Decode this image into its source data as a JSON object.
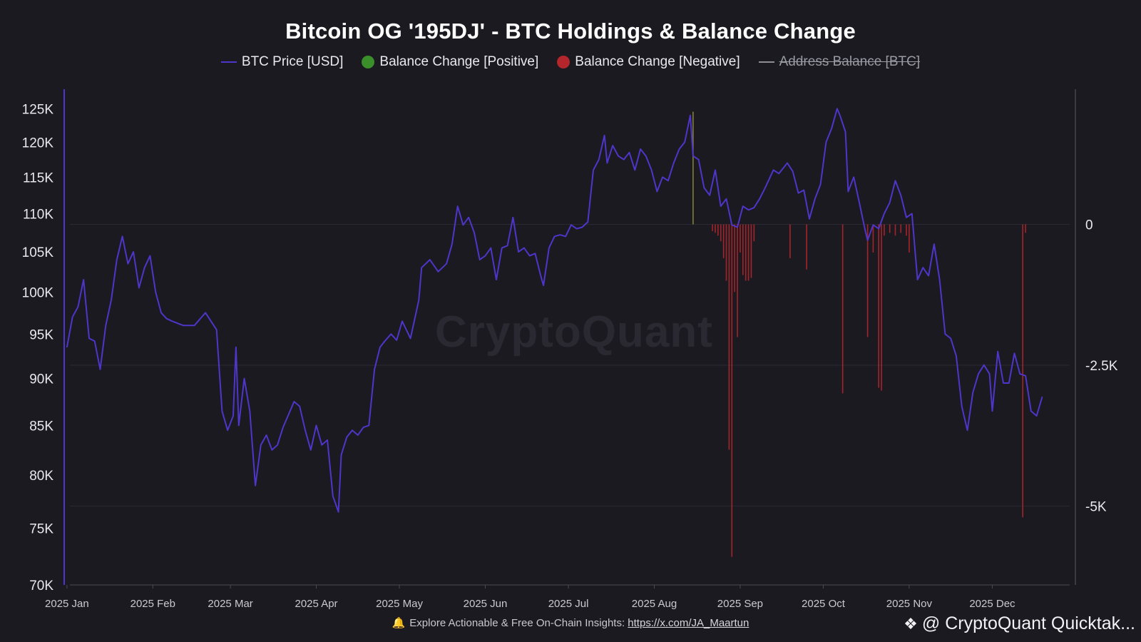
{
  "chart_data": {
    "type": "line",
    "title": "Bitcoin OG '195DJ' - BTC Holdings & Balance Change",
    "legend": [
      {
        "label": "BTC Price [USD]",
        "color": "#4f35c9",
        "marker": "line",
        "visible": true
      },
      {
        "label": "Balance Change [Positive]",
        "color": "#3a8f2a",
        "marker": "dot",
        "visible": true
      },
      {
        "label": "Balance Change [Negative]",
        "color": "#b3262b",
        "marker": "dot",
        "visible": true
      },
      {
        "label": "Address Balance [BTC]",
        "color": "#9a9aa3",
        "marker": "line",
        "visible": false
      }
    ],
    "legend_position": "top-center",
    "x_tick_labels": [
      "2025 Jan",
      "2025 Feb",
      "2025 Mar",
      "2025 Apr",
      "2025 May",
      "2025 Jun",
      "2025 Jul",
      "2025 Aug",
      "2025 Sep",
      "2025 Oct",
      "2025 Nov",
      "2025 Dec"
    ],
    "x_range": [
      "2024-12-31",
      "2025-12-31"
    ],
    "left_axis": {
      "scale": "log",
      "range": [
        70000,
        128000
      ],
      "ticks": [
        70000,
        75000,
        80000,
        85000,
        90000,
        95000,
        100000,
        105000,
        110000,
        115000,
        120000,
        125000
      ],
      "tick_labels": [
        "70K",
        "75K",
        "80K",
        "85K",
        "90K",
        "95K",
        "100K",
        "105K",
        "110K",
        "115K",
        "120K",
        "125K"
      ]
    },
    "right_axis": {
      "scale": "linear",
      "range": [
        -6400,
        2400
      ],
      "ticks": [
        0,
        -2500,
        -5000
      ],
      "tick_labels": [
        "0",
        "-2.5K",
        "-5K"
      ]
    },
    "grid": "horizontal lines at right-axis ticks",
    "series": [
      {
        "name": "BTC Price [USD]",
        "axis": "left",
        "points": [
          [
            "2025-01-01",
            93500
          ],
          [
            "2025-01-03",
            97000
          ],
          [
            "2025-01-05",
            98200
          ],
          [
            "2025-01-07",
            101500
          ],
          [
            "2025-01-09",
            94500
          ],
          [
            "2025-01-11",
            94200
          ],
          [
            "2025-01-13",
            91000
          ],
          [
            "2025-01-15",
            96000
          ],
          [
            "2025-01-17",
            99000
          ],
          [
            "2025-01-19",
            104000
          ],
          [
            "2025-01-21",
            107000
          ],
          [
            "2025-01-23",
            103500
          ],
          [
            "2025-01-25",
            105000
          ],
          [
            "2025-01-27",
            100500
          ],
          [
            "2025-01-29",
            103000
          ],
          [
            "2025-01-31",
            104500
          ],
          [
            "2025-02-02",
            100000
          ],
          [
            "2025-02-04",
            97500
          ],
          [
            "2025-02-06",
            96800
          ],
          [
            "2025-02-08",
            96500
          ],
          [
            "2025-02-12",
            96000
          ],
          [
            "2025-02-16",
            96000
          ],
          [
            "2025-02-20",
            97500
          ],
          [
            "2025-02-22",
            96500
          ],
          [
            "2025-02-24",
            95500
          ],
          [
            "2025-02-26",
            86500
          ],
          [
            "2025-02-28",
            84500
          ],
          [
            "2025-03-02",
            86000
          ],
          [
            "2025-03-03",
            93500
          ],
          [
            "2025-03-04",
            85000
          ],
          [
            "2025-03-06",
            90000
          ],
          [
            "2025-03-08",
            86500
          ],
          [
            "2025-03-10",
            79000
          ],
          [
            "2025-03-12",
            83000
          ],
          [
            "2025-03-14",
            84000
          ],
          [
            "2025-03-16",
            82500
          ],
          [
            "2025-03-18",
            83000
          ],
          [
            "2025-03-20",
            84800
          ],
          [
            "2025-03-24",
            87500
          ],
          [
            "2025-03-26",
            87000
          ],
          [
            "2025-03-28",
            84500
          ],
          [
            "2025-03-30",
            82500
          ],
          [
            "2025-04-01",
            85000
          ],
          [
            "2025-04-03",
            83000
          ],
          [
            "2025-04-05",
            83500
          ],
          [
            "2025-04-07",
            78000
          ],
          [
            "2025-04-09",
            76500
          ],
          [
            "2025-04-10",
            82000
          ],
          [
            "2025-04-12",
            83800
          ],
          [
            "2025-04-14",
            84500
          ],
          [
            "2025-04-16",
            84000
          ],
          [
            "2025-04-18",
            84800
          ],
          [
            "2025-04-20",
            85000
          ],
          [
            "2025-04-22",
            91000
          ],
          [
            "2025-04-24",
            93500
          ],
          [
            "2025-04-26",
            94300
          ],
          [
            "2025-04-28",
            95000
          ],
          [
            "2025-04-30",
            94300
          ],
          [
            "2025-05-02",
            96500
          ],
          [
            "2025-05-05",
            94500
          ],
          [
            "2025-05-08",
            99000
          ],
          [
            "2025-05-09",
            103000
          ],
          [
            "2025-05-12",
            104000
          ],
          [
            "2025-05-15",
            102500
          ],
          [
            "2025-05-18",
            103500
          ],
          [
            "2025-05-20",
            106000
          ],
          [
            "2025-05-22",
            111000
          ],
          [
            "2025-05-24",
            108500
          ],
          [
            "2025-05-26",
            109500
          ],
          [
            "2025-05-28",
            107500
          ],
          [
            "2025-05-30",
            104000
          ],
          [
            "2025-06-01",
            104500
          ],
          [
            "2025-06-03",
            105500
          ],
          [
            "2025-06-05",
            101500
          ],
          [
            "2025-06-07",
            105500
          ],
          [
            "2025-06-09",
            105800
          ],
          [
            "2025-06-11",
            109500
          ],
          [
            "2025-06-13",
            105000
          ],
          [
            "2025-06-15",
            105500
          ],
          [
            "2025-06-17",
            104500
          ],
          [
            "2025-06-19",
            104800
          ],
          [
            "2025-06-21",
            102000
          ],
          [
            "2025-06-22",
            100800
          ],
          [
            "2025-06-24",
            105500
          ],
          [
            "2025-06-26",
            107000
          ],
          [
            "2025-06-28",
            107200
          ],
          [
            "2025-06-30",
            107000
          ],
          [
            "2025-07-02",
            108500
          ],
          [
            "2025-07-04",
            108000
          ],
          [
            "2025-07-06",
            108200
          ],
          [
            "2025-07-08",
            108900
          ],
          [
            "2025-07-10",
            116000
          ],
          [
            "2025-07-12",
            117500
          ],
          [
            "2025-07-14",
            121000
          ],
          [
            "2025-07-15",
            117000
          ],
          [
            "2025-07-17",
            119500
          ],
          [
            "2025-07-19",
            118000
          ],
          [
            "2025-07-21",
            117500
          ],
          [
            "2025-07-23",
            118500
          ],
          [
            "2025-07-25",
            116000
          ],
          [
            "2025-07-27",
            119000
          ],
          [
            "2025-07-29",
            118000
          ],
          [
            "2025-07-31",
            116000
          ],
          [
            "2025-08-02",
            113000
          ],
          [
            "2025-08-04",
            115000
          ],
          [
            "2025-08-06",
            114500
          ],
          [
            "2025-08-08",
            117000
          ],
          [
            "2025-08-10",
            119000
          ],
          [
            "2025-08-12",
            120000
          ],
          [
            "2025-08-14",
            124000
          ],
          [
            "2025-08-15",
            118000
          ],
          [
            "2025-08-17",
            117500
          ],
          [
            "2025-08-19",
            113500
          ],
          [
            "2025-08-21",
            112500
          ],
          [
            "2025-08-23",
            116000
          ],
          [
            "2025-08-25",
            111000
          ],
          [
            "2025-08-27",
            112000
          ],
          [
            "2025-08-29",
            108500
          ],
          [
            "2025-08-31",
            108200
          ],
          [
            "2025-09-02",
            111000
          ],
          [
            "2025-09-04",
            110500
          ],
          [
            "2025-09-06",
            110800
          ],
          [
            "2025-09-08",
            112000
          ],
          [
            "2025-09-10",
            113500
          ],
          [
            "2025-09-13",
            116000
          ],
          [
            "2025-09-15",
            115500
          ],
          [
            "2025-09-18",
            117000
          ],
          [
            "2025-09-20",
            115800
          ],
          [
            "2025-09-22",
            112800
          ],
          [
            "2025-09-24",
            113200
          ],
          [
            "2025-09-26",
            109300
          ],
          [
            "2025-09-28",
            112000
          ],
          [
            "2025-09-30",
            114000
          ],
          [
            "2025-10-02",
            120000
          ],
          [
            "2025-10-04",
            122000
          ],
          [
            "2025-10-06",
            125000
          ],
          [
            "2025-10-07",
            124000
          ],
          [
            "2025-10-09",
            121500
          ],
          [
            "2025-10-10",
            113000
          ],
          [
            "2025-10-12",
            115000
          ],
          [
            "2025-10-14",
            111500
          ],
          [
            "2025-10-16",
            108000
          ],
          [
            "2025-10-17",
            106500
          ],
          [
            "2025-10-19",
            108500
          ],
          [
            "2025-10-21",
            108000
          ],
          [
            "2025-10-23",
            110000
          ],
          [
            "2025-10-25",
            111500
          ],
          [
            "2025-10-27",
            114500
          ],
          [
            "2025-10-29",
            112500
          ],
          [
            "2025-10-31",
            109500
          ],
          [
            "2025-11-02",
            110000
          ],
          [
            "2025-11-04",
            101500
          ],
          [
            "2025-11-06",
            103000
          ],
          [
            "2025-11-08",
            102000
          ],
          [
            "2025-11-10",
            106000
          ],
          [
            "2025-11-12",
            101500
          ],
          [
            "2025-11-14",
            95000
          ],
          [
            "2025-11-16",
            94500
          ],
          [
            "2025-11-18",
            92500
          ],
          [
            "2025-11-20",
            87000
          ],
          [
            "2025-11-22",
            84500
          ],
          [
            "2025-11-24",
            88500
          ],
          [
            "2025-11-26",
            90500
          ],
          [
            "2025-11-28",
            91500
          ],
          [
            "2025-11-30",
            90500
          ],
          [
            "2025-12-01",
            86500
          ],
          [
            "2025-12-03",
            93000
          ],
          [
            "2025-12-05",
            89500
          ],
          [
            "2025-12-07",
            89500
          ],
          [
            "2025-12-09",
            92800
          ],
          [
            "2025-12-11",
            90500
          ],
          [
            "2025-12-13",
            90300
          ],
          [
            "2025-12-15",
            86500
          ],
          [
            "2025-12-17",
            86000
          ],
          [
            "2025-12-19",
            88000
          ]
        ]
      },
      {
        "name": "Balance Change [Negative]",
        "axis": "right",
        "type": "bar",
        "points": [
          [
            "2025-08-22",
            -120
          ],
          [
            "2025-08-23",
            -150
          ],
          [
            "2025-08-24",
            -200
          ],
          [
            "2025-08-25",
            -300
          ],
          [
            "2025-08-26",
            -600
          ],
          [
            "2025-08-27",
            -1000
          ],
          [
            "2025-08-28",
            -4000
          ],
          [
            "2025-08-29",
            -5900
          ],
          [
            "2025-08-30",
            -1200
          ],
          [
            "2025-08-31",
            -2000
          ],
          [
            "2025-09-01",
            -500
          ],
          [
            "2025-09-02",
            -900
          ],
          [
            "2025-09-03",
            -1000
          ],
          [
            "2025-09-04",
            -1000
          ],
          [
            "2025-09-05",
            -950
          ],
          [
            "2025-09-06",
            -300
          ],
          [
            "2025-09-19",
            -600
          ],
          [
            "2025-09-25",
            -800
          ],
          [
            "2025-10-08",
            -3000
          ],
          [
            "2025-10-17",
            -2000
          ],
          [
            "2025-10-19",
            -500
          ],
          [
            "2025-10-21",
            -2900
          ],
          [
            "2025-10-22",
            -2950
          ],
          [
            "2025-10-23",
            -200
          ],
          [
            "2025-10-25",
            -150
          ],
          [
            "2025-10-27",
            -200
          ],
          [
            "2025-10-29",
            -150
          ],
          [
            "2025-10-31",
            -200
          ],
          [
            "2025-11-01",
            -500
          ],
          [
            "2025-12-12",
            -5200
          ],
          [
            "2025-12-13",
            -150
          ]
        ]
      },
      {
        "name": "Balance Change [Positive]",
        "axis": "right",
        "type": "bar",
        "points": [
          [
            "2025-08-15",
            2000
          ]
        ]
      }
    ]
  },
  "watermark": "CryptoQuant",
  "footer": {
    "bell_icon": "bell-icon",
    "text": "Explore Actionable & Free On-Chain Insights:",
    "link": "https://x.com/JA_Maartun"
  },
  "brand": {
    "icon": "cryptoquant-logo-icon",
    "text": "@ CryptoQuant Quicktak..."
  }
}
